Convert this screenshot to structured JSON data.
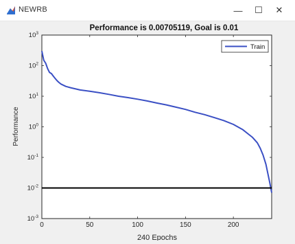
{
  "window": {
    "title": "NEWRB",
    "icon": "matlab-figure-icon",
    "controls": {
      "minimize": "—",
      "maximize": "☐",
      "close": "✕"
    }
  },
  "chart_data": {
    "type": "line",
    "title": "Performance is 0.00705119, Goal is 0.01",
    "xlabel": "240 Epochs",
    "ylabel": "Performance",
    "xlim": [
      0,
      240
    ],
    "ylim": [
      0.001,
      1000
    ],
    "yscale": "log",
    "x_ticks": [
      0,
      50,
      100,
      150,
      200
    ],
    "y_ticks": [
      {
        "value": 1000,
        "base": "10",
        "exp": "3"
      },
      {
        "value": 100,
        "base": "10",
        "exp": "2"
      },
      {
        "value": 10,
        "base": "10",
        "exp": "1"
      },
      {
        "value": 1,
        "base": "10",
        "exp": "0"
      },
      {
        "value": 0.1,
        "base": "10",
        "exp": "-1"
      },
      {
        "value": 0.01,
        "base": "10",
        "exp": "-2"
      },
      {
        "value": 0.001,
        "base": "10",
        "exp": "-3"
      }
    ],
    "legend": {
      "entries": [
        "Train"
      ],
      "placement": "top-right"
    },
    "grid": false,
    "series": [
      {
        "name": "Train",
        "color": "#3a4fc4",
        "x": [
          0,
          2,
          4,
          6,
          8,
          10,
          12,
          14,
          16,
          18,
          20,
          25,
          30,
          40,
          50,
          60,
          70,
          80,
          90,
          100,
          110,
          120,
          130,
          140,
          150,
          160,
          170,
          180,
          190,
          200,
          210,
          215,
          220,
          225,
          228,
          231,
          234,
          236,
          238,
          240
        ],
        "y": [
          300,
          150,
          120,
          80,
          60,
          55,
          45,
          38,
          32,
          28,
          25,
          21,
          19,
          16,
          14.5,
          13,
          11.5,
          10,
          9,
          8,
          7,
          6,
          5.2,
          4.4,
          3.7,
          3.0,
          2.5,
          2.0,
          1.6,
          1.2,
          0.8,
          0.6,
          0.45,
          0.3,
          0.2,
          0.12,
          0.06,
          0.03,
          0.015,
          0.00705
        ]
      },
      {
        "name": "Goal",
        "color": "#000000",
        "x": [
          0,
          240
        ],
        "y": [
          0.01,
          0.01
        ]
      }
    ]
  }
}
